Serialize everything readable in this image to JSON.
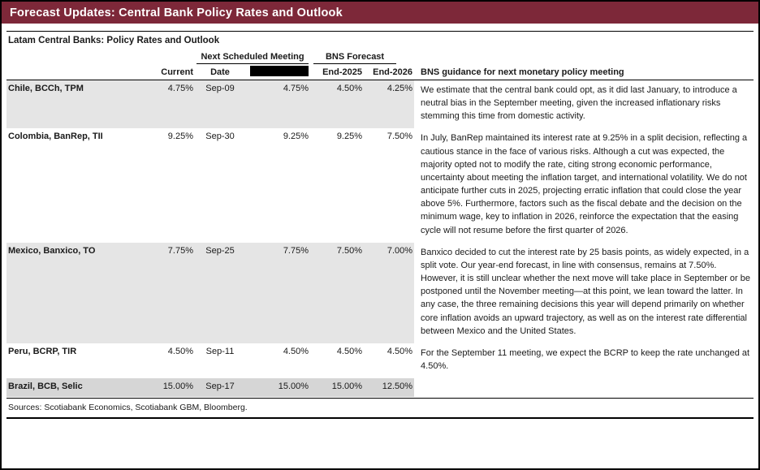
{
  "page": {
    "title": "Forecast Updates: Central Bank Policy Rates and Outlook",
    "subtitle": "Latam Central Banks: Policy Rates and Outlook",
    "sources": "Sources: Scotiabank Economics, Scotiabank GBM, Bloomberg."
  },
  "colors": {
    "title_bar_bg": "#7d2839",
    "title_bar_text": "#ffffff",
    "row_shade_light": "#e5e5e5",
    "row_shade_dark": "#d6d6d6",
    "rule": "#000000"
  },
  "table": {
    "group_headers": {
      "next_scheduled_meeting": "Next Scheduled Meeting",
      "bns_forecast": "BNS Forecast"
    },
    "column_headers": {
      "current": "Current",
      "date": "Date",
      "redacted": "",
      "end_2025": "End-2025",
      "end_2026": "End-2026",
      "guidance": "BNS guidance for next monetary policy meeting"
    },
    "rows": [
      {
        "country": "Chile, BCCh, TPM",
        "current": "4.75%",
        "date": "Sep-09",
        "redacted_value": "4.75%",
        "end_2025": "4.50%",
        "end_2026": "4.25%",
        "guidance": "We estimate that the central bank could opt, as it did last January, to introduce a neutral bias in the September meeting, given the increased inflationary risks stemming this time from domestic activity."
      },
      {
        "country": "Colombia, BanRep, TII",
        "current": "9.25%",
        "date": "Sep-30",
        "redacted_value": "9.25%",
        "end_2025": "9.25%",
        "end_2026": "7.50%",
        "guidance": "In July, BanRep maintained its interest rate at 9.25% in a split decision, reflecting a cautious stance in the face of various risks. Although a cut was expected, the majority opted not to modify the rate, citing strong economic performance, uncertainty about meeting the inflation target, and international volatility. We do not anticipate further cuts in 2025, projecting erratic inflation that could close the year above 5%. Furthermore, factors such as the fiscal debate and the decision on the minimum wage, key to inflation in 2026, reinforce the expectation that the easing cycle will not resume before the first quarter of 2026."
      },
      {
        "country": "Mexico, Banxico, TO",
        "current": "7.75%",
        "date": "Sep-25",
        "redacted_value": "7.75%",
        "end_2025": "7.50%",
        "end_2026": "7.00%",
        "guidance": "Banxico decided to cut the interest rate by 25 basis points, as widely expected, in a split vote. Our year-end forecast, in line with consensus, remains at 7.50%. However, it is still unclear whether the next move will take place in September or be postponed until the November meeting—at this point, we lean toward the latter. In any case, the three remaining decisions this year will depend primarily on whether core inflation avoids an upward trajectory, as well as on the interest rate differential between Mexico and the United States."
      },
      {
        "country": "Peru, BCRP, TIR",
        "current": "4.50%",
        "date": "Sep-11",
        "redacted_value": "4.50%",
        "end_2025": "4.50%",
        "end_2026": "4.50%",
        "guidance": "For the September 11 meeting, we expect the BCRP to keep the rate unchanged at 4.50%."
      },
      {
        "country": "Brazil, BCB, Selic",
        "current": "15.00%",
        "date": "Sep-17",
        "redacted_value": "15.00%",
        "end_2025": "15.00%",
        "end_2026": "12.50%",
        "guidance": ""
      }
    ]
  }
}
